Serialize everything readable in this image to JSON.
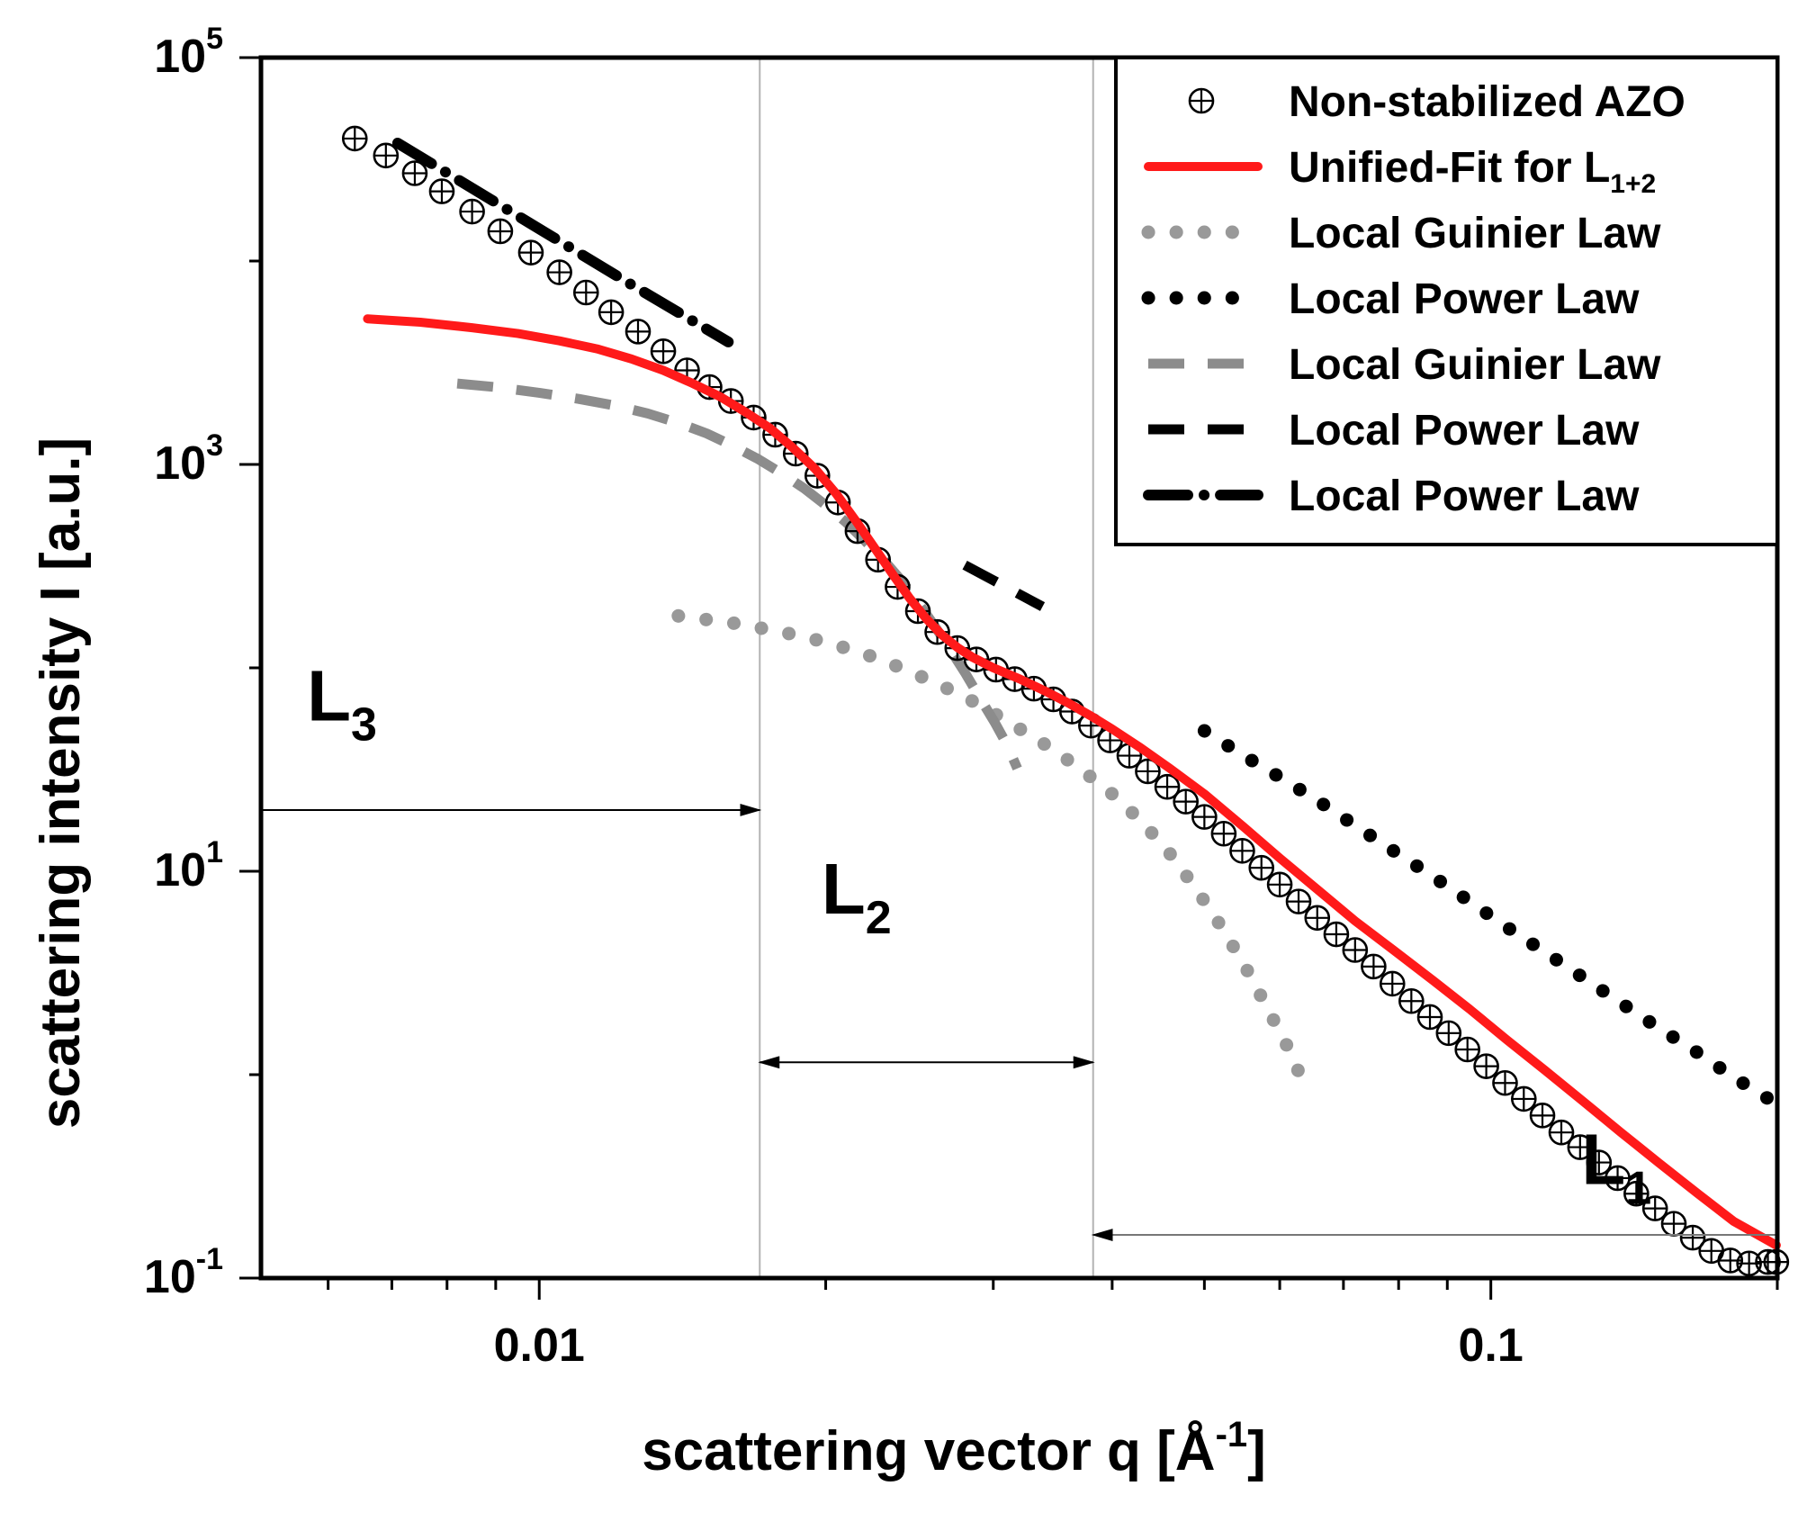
{
  "chart_data": {
    "type": "scatter",
    "title": "",
    "xlabel": "scattering vector q [Å",
    "xlabel_sup": "-1",
    "xlabel_end": "]",
    "ylabel": "scattering intensity I [a.u.]",
    "xscale": "log",
    "yscale": "log",
    "xlim": [
      0.0051,
      0.2
    ],
    "ylim": [
      0.1,
      100000
    ],
    "x_ticks": [
      {
        "value": 0.01,
        "label": "0.01"
      },
      {
        "value": 0.1,
        "label": "0.1"
      }
    ],
    "y_ticks": [
      {
        "value": 0.1,
        "base": "10",
        "exp": "-1"
      },
      {
        "value": 10,
        "base": "10",
        "exp": "1"
      },
      {
        "value": 1000,
        "base": "10",
        "exp": "3"
      },
      {
        "value": 100000,
        "base": "10",
        "exp": "5"
      }
    ],
    "legend_position": "top-right",
    "series": [
      {
        "name": "Non-stabilized AZO",
        "kind": "markers",
        "color": "#000000",
        "x": [
          0.0064,
          0.0069,
          0.0074,
          0.0079,
          0.0085,
          0.0091,
          0.0098,
          0.0105,
          0.0112,
          0.0119,
          0.0127,
          0.0135,
          0.0143,
          0.0151,
          0.0159,
          0.0168,
          0.0177,
          0.0186,
          0.0196,
          0.0206,
          0.0216,
          0.0227,
          0.0238,
          0.025,
          0.0262,
          0.0275,
          0.0288,
          0.0302,
          0.0316,
          0.0331,
          0.0347,
          0.0363,
          0.038,
          0.0398,
          0.0417,
          0.0436,
          0.0457,
          0.0478,
          0.05,
          0.0524,
          0.0548,
          0.0574,
          0.06,
          0.0628,
          0.0657,
          0.0688,
          0.072,
          0.0753,
          0.0788,
          0.0825,
          0.0863,
          0.0903,
          0.0945,
          0.0989,
          0.1035,
          0.1083,
          0.1133,
          0.1186,
          0.1241,
          0.1299,
          0.1359,
          0.1422,
          0.1488,
          0.1557,
          0.163,
          0.1705,
          0.1785,
          0.1868,
          0.1955,
          0.1995
        ],
        "y": [
          40000,
          33000,
          27000,
          22000,
          17500,
          14000,
          11000,
          8800,
          7000,
          5600,
          4500,
          3600,
          2900,
          2400,
          2050,
          1700,
          1400,
          1130,
          880,
          650,
          470,
          340,
          250,
          190,
          150,
          125,
          110,
          98,
          88,
          79,
          70,
          61,
          52,
          44,
          37,
          31,
          26,
          22,
          18.5,
          15.3,
          12.6,
          10.4,
          8.6,
          7.1,
          5.9,
          4.9,
          4.1,
          3.4,
          2.8,
          2.3,
          1.92,
          1.6,
          1.33,
          1.1,
          0.91,
          0.76,
          0.63,
          0.52,
          0.44,
          0.37,
          0.31,
          0.26,
          0.22,
          0.185,
          0.158,
          0.136,
          0.122,
          0.118,
          0.12,
          0.12
        ]
      },
      {
        "name": "Unified-Fit for L",
        "name_sub": "1+2",
        "kind": "line",
        "color": "#ff1a1a",
        "x": [
          0.0066,
          0.0075,
          0.0085,
          0.0095,
          0.0105,
          0.0115,
          0.0125,
          0.0135,
          0.0145,
          0.0155,
          0.0165,
          0.0175,
          0.0185,
          0.0195,
          0.0205,
          0.0215,
          0.0225,
          0.0235,
          0.0245,
          0.0255,
          0.0265,
          0.0275,
          0.0285,
          0.03,
          0.032,
          0.034,
          0.036,
          0.038,
          0.04,
          0.043,
          0.046,
          0.05,
          0.055,
          0.06,
          0.066,
          0.072,
          0.079,
          0.087,
          0.095,
          0.104,
          0.114,
          0.125,
          0.137,
          0.15,
          0.165,
          0.18,
          0.1995
        ],
        "y": [
          5200,
          5000,
          4700,
          4400,
          4050,
          3700,
          3300,
          2900,
          2500,
          2150,
          1800,
          1500,
          1200,
          950,
          720,
          530,
          390,
          290,
          220,
          175,
          145,
          126,
          113,
          100,
          88,
          77,
          67,
          58,
          50,
          40,
          32,
          24,
          16.5,
          11.6,
          8.0,
          5.7,
          4.1,
          2.9,
          2.1,
          1.48,
          1.05,
          0.74,
          0.52,
          0.37,
          0.26,
          0.19,
          0.145
        ]
      },
      {
        "name": "Local Guinier Law",
        "kind": "dotted",
        "color": "#999999",
        "x": [
          0.014,
          0.016,
          0.018,
          0.02,
          0.022,
          0.024,
          0.026,
          0.028,
          0.03,
          0.032,
          0.034,
          0.036,
          0.038,
          0.04,
          0.043,
          0.046,
          0.049,
          0.052,
          0.055,
          0.058,
          0.061,
          0.064
        ],
        "y": [
          180,
          166,
          150,
          134,
          117,
          100,
          85,
          72,
          60,
          50,
          42,
          35,
          29,
          24,
          17.5,
          12.2,
          8.2,
          5.4,
          3.5,
          2.2,
          1.4,
          0.85
        ]
      },
      {
        "name": "Local Power Law",
        "kind": "dotted",
        "color": "#000000",
        "x": [
          0.05,
          0.055,
          0.06,
          0.066,
          0.072,
          0.079,
          0.087,
          0.095,
          0.104,
          0.114,
          0.125,
          0.137,
          0.15,
          0.165,
          0.18,
          0.1995
        ],
        "y": [
          49,
          37,
          29,
          22,
          16.8,
          12.6,
          9.4,
          7.1,
          5.3,
          4.0,
          3.0,
          2.25,
          1.7,
          1.28,
          0.97,
          0.72
        ]
      },
      {
        "name": "Local Guinier Law",
        "kind": "dashed",
        "color": "#8c8c8c",
        "x": [
          0.0082,
          0.009,
          0.01,
          0.011,
          0.012,
          0.013,
          0.014,
          0.015,
          0.016,
          0.017,
          0.018,
          0.019,
          0.02,
          0.021,
          0.022,
          0.023,
          0.024,
          0.025,
          0.026,
          0.027,
          0.028,
          0.029,
          0.0301,
          0.031,
          0.0318
        ],
        "y": [
          2500,
          2400,
          2250,
          2100,
          1950,
          1780,
          1600,
          1420,
          1230,
          1060,
          900,
          760,
          630,
          520,
          420,
          340,
          270,
          210,
          162,
          124,
          95,
          72,
          54,
          42,
          32
        ]
      },
      {
        "name": "Local Power Law",
        "kind": "dashed",
        "color": "#000000",
        "x": [
          0.028,
          0.0338
        ],
        "y": [
          320,
          200
        ]
      },
      {
        "name": "Local Power Law",
        "kind": "dashdot",
        "color": "#000000",
        "x": [
          0.0071,
          0.0123,
          0.0158
        ],
        "y": [
          38000,
          8000,
          4000
        ]
      }
    ],
    "vertical_lines": [
      0.01705,
      0.0382
    ],
    "regions": [
      {
        "label": "L",
        "sub": "3",
        "label_x": 0.0057,
        "label_y": 55,
        "arrow_from": 0.0051,
        "arrow_to": 0.01705,
        "arrow_y": 20,
        "direction": "right"
      },
      {
        "label": "L",
        "sub": "2",
        "label_x": 0.0198,
        "label_y": 6.2,
        "arrow_from": 0.01705,
        "arrow_to": 0.0382,
        "arrow_y": 1.15,
        "direction": "both"
      },
      {
        "label": "L",
        "sub": "1",
        "label_x": 0.1245,
        "label_y": 0.29,
        "arrow_from": 0.0382,
        "arrow_to": 0.2,
        "arrow_y": 0.163,
        "direction": "left"
      }
    ]
  }
}
